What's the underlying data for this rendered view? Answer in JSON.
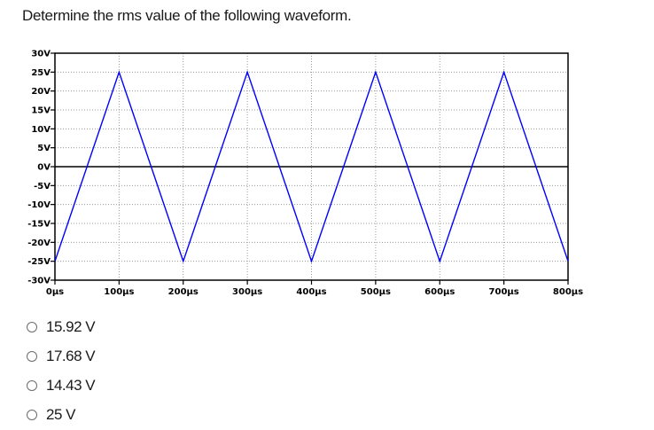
{
  "question": "Determine the rms value of the following waveform.",
  "chart_data": {
    "type": "line",
    "title": "",
    "xlabel": "",
    "ylabel": "",
    "x_unit": "µs",
    "y_unit": "V",
    "xlim": [
      0,
      800
    ],
    "ylim": [
      -30,
      30
    ],
    "x_ticks": [
      "0µs",
      "100µs",
      "200µs",
      "300µs",
      "400µs",
      "500µs",
      "600µs",
      "700µs",
      "800µs"
    ],
    "y_ticks": [
      "30V",
      "25V",
      "20V",
      "15V",
      "10V",
      "5V",
      "0V",
      "-5V",
      "-10V",
      "-15V",
      "-20V",
      "-25V",
      "-30V"
    ],
    "grid": true,
    "series": [
      {
        "x": [
          0,
          100,
          200,
          300,
          400,
          500,
          600,
          700,
          800
        ],
        "y": [
          -25,
          25,
          -25,
          25,
          -25,
          25,
          -25,
          25,
          -25
        ],
        "color": "#0000ff"
      }
    ]
  },
  "options": [
    {
      "label": "15.92 V"
    },
    {
      "label": "17.68 V"
    },
    {
      "label": "14.43 V"
    },
    {
      "label": "25 V"
    }
  ]
}
